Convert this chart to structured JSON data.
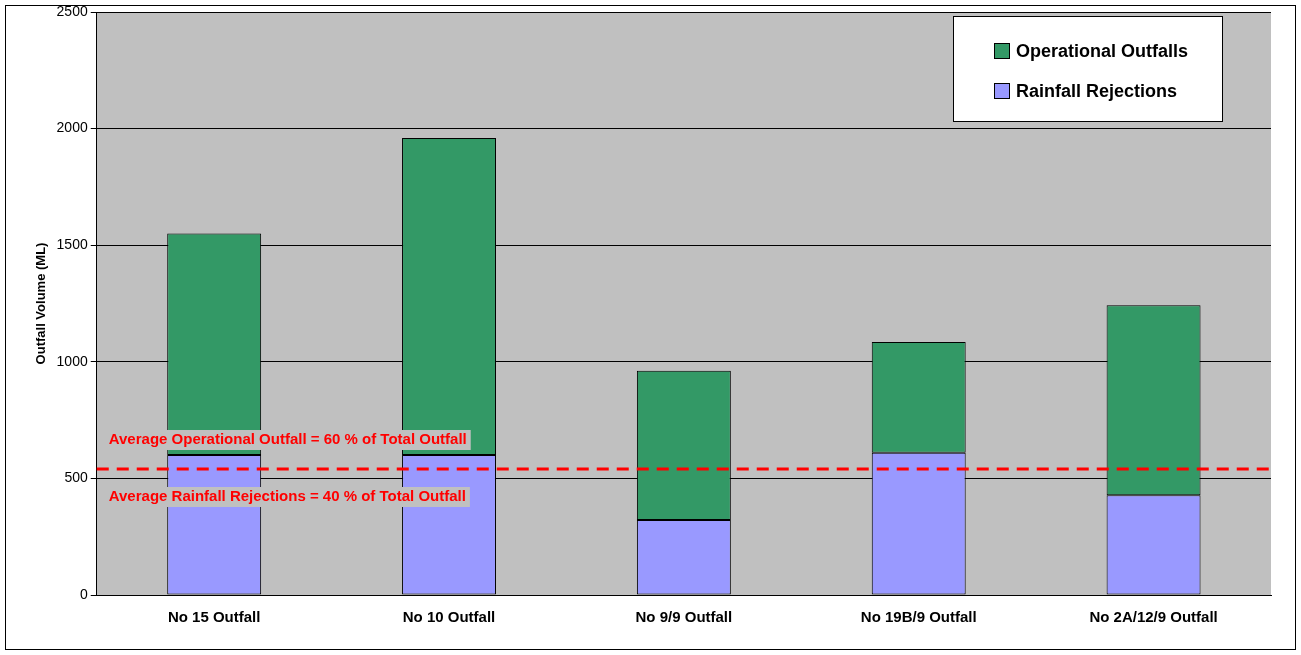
{
  "chart_data": {
    "type": "bar",
    "ylabel": "Outfall Volume (ML)",
    "categories": [
      "No 15 Outfall",
      "No 10 Outfall",
      "No 9/9 Outfall",
      "No 19B/9 Outfall",
      "No 2A/12/9 Outfall"
    ],
    "series": [
      {
        "name": "Rainfall Rejections",
        "color": "#9999ff",
        "values": [
          600,
          600,
          322,
          610,
          428
        ]
      },
      {
        "name": "Operational Outfalls",
        "color": "#339966",
        "values": [
          950,
          1360,
          640,
          475,
          814
        ]
      }
    ],
    "stacked": true,
    "ylim": [
      0,
      2500
    ],
    "yticks": [
      0,
      500,
      1000,
      1500,
      2000,
      2500
    ],
    "grid": "y",
    "legend": "top right",
    "ref_lines": [
      {
        "axis": "y",
        "value": 540,
        "color": "#ff0000",
        "line_style": "dashed"
      }
    ],
    "annotations": [
      "Average Operational Outfall = 60 % of Total Outfall",
      "Average Rainfall Rejections = 40 % of Total Outfall"
    ]
  }
}
